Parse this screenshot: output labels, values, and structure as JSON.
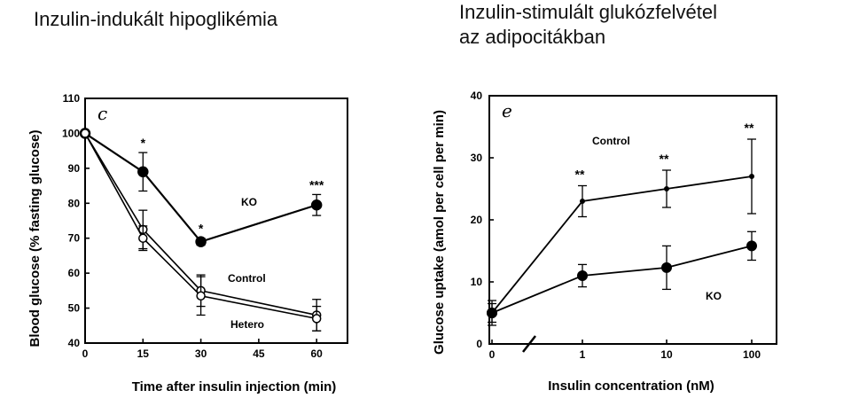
{
  "captions": {
    "left": "Inzulin-indukált hipoglikémia",
    "right_line1": "Inzulin-stimulált glukózfelvétel",
    "right_line2": "az adipocitákban"
  },
  "chart_data": [
    {
      "type": "line",
      "panel_label": "c",
      "xlabel": "Time after insulin injection (min)",
      "ylabel": "Blood glucose (% fasting glucose)",
      "x_ticks": [
        "0",
        "15",
        "30",
        "45",
        "60"
      ],
      "y_ticks": [
        "40",
        "50",
        "60",
        "70",
        "80",
        "90",
        "100",
        "110"
      ],
      "xlim": [
        0,
        68
      ],
      "ylim": [
        40,
        110
      ],
      "grid": false,
      "series": [
        {
          "name": "KO",
          "marker": "filled-circle",
          "x": [
            0,
            15,
            30,
            60
          ],
          "y": [
            100,
            89,
            69,
            79.5
          ],
          "err": [
            0,
            5.5,
            1,
            3
          ],
          "significance": [
            "",
            "*",
            "*",
            "***"
          ]
        },
        {
          "name": "Control",
          "marker": "open-circle",
          "x": [
            0,
            15,
            30,
            60
          ],
          "y": [
            100,
            72.5,
            55,
            48
          ],
          "err": [
            0,
            5.5,
            4.5,
            4.5
          ]
        },
        {
          "name": "Hetero",
          "marker": "open-circle",
          "x": [
            0,
            15,
            30,
            60
          ],
          "y": [
            100,
            70,
            53.5,
            47
          ],
          "err": [
            0,
            3.5,
            5.5,
            3.5
          ]
        }
      ]
    },
    {
      "type": "line",
      "panel_label": "e",
      "xlabel": "Insulin concentration (nM)",
      "ylabel": "Glucose uptake (amol per cell per min)",
      "x_ticks": [
        "0",
        "1",
        "10",
        "100"
      ],
      "y_ticks": [
        "0",
        "10",
        "20",
        "30",
        "40"
      ],
      "x_scale": "log with axis break after 0",
      "x": [
        "0",
        "1",
        "10",
        "100"
      ],
      "ylim": [
        0,
        40
      ],
      "grid": false,
      "series": [
        {
          "name": "Control",
          "marker": "small-dot",
          "y": [
            5,
            23,
            25,
            27
          ],
          "err": [
            2,
            2.5,
            3,
            6
          ],
          "significance": [
            "",
            "**",
            "**",
            "**"
          ]
        },
        {
          "name": "KO",
          "marker": "filled-circle",
          "y": [
            5,
            11,
            12.3,
            15.8
          ],
          "err": [
            1.5,
            1.8,
            3.5,
            2.3
          ]
        }
      ]
    }
  ]
}
